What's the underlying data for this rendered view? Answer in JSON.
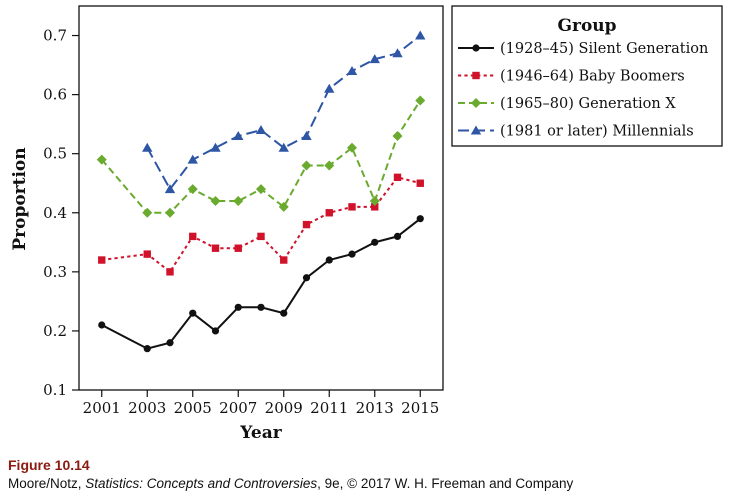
{
  "chart_data": {
    "type": "line",
    "xlabel": "Year",
    "ylabel": "Proportion",
    "xlim": [
      2000,
      2016
    ],
    "ylim": [
      0.1,
      0.75
    ],
    "x_ticks": [
      2001,
      2003,
      2005,
      2007,
      2009,
      2011,
      2013,
      2015
    ],
    "y_ticks": [
      0.1,
      0.2,
      0.3,
      0.4,
      0.5,
      0.6,
      0.7
    ],
    "legend_title": "Group",
    "legend_position": "outside-right",
    "series": [
      {
        "name": "(1928–45) Silent Generation",
        "color": "#111111",
        "marker": "circle",
        "dash": "solid",
        "points": [
          [
            2001,
            0.21
          ],
          [
            2003,
            0.17
          ],
          [
            2004,
            0.18
          ],
          [
            2005,
            0.23
          ],
          [
            2006,
            0.2
          ],
          [
            2007,
            0.24
          ],
          [
            2008,
            0.24
          ],
          [
            2009,
            0.23
          ],
          [
            2010,
            0.29
          ],
          [
            2011,
            0.32
          ],
          [
            2012,
            0.33
          ],
          [
            2013,
            0.35
          ],
          [
            2014,
            0.36
          ],
          [
            2015,
            0.39
          ]
        ]
      },
      {
        "name": "(1946–64) Baby Boomers",
        "color": "#d0122b",
        "marker": "square",
        "dash": "dotted",
        "points": [
          [
            2001,
            0.32
          ],
          [
            2003,
            0.33
          ],
          [
            2004,
            0.3
          ],
          [
            2005,
            0.36
          ],
          [
            2006,
            0.34
          ],
          [
            2007,
            0.34
          ],
          [
            2008,
            0.36
          ],
          [
            2009,
            0.32
          ],
          [
            2010,
            0.38
          ],
          [
            2011,
            0.4
          ],
          [
            2012,
            0.41
          ],
          [
            2013,
            0.41
          ],
          [
            2014,
            0.46
          ],
          [
            2015,
            0.45
          ]
        ]
      },
      {
        "name": "(1965–80) Generation X",
        "color": "#6aaa2e",
        "marker": "diamond",
        "dash": "dashed",
        "points": [
          [
            2001,
            0.49
          ],
          [
            2003,
            0.4
          ],
          [
            2004,
            0.4
          ],
          [
            2005,
            0.44
          ],
          [
            2006,
            0.42
          ],
          [
            2007,
            0.42
          ],
          [
            2008,
            0.44
          ],
          [
            2009,
            0.41
          ],
          [
            2010,
            0.48
          ],
          [
            2011,
            0.48
          ],
          [
            2012,
            0.51
          ],
          [
            2013,
            0.42
          ],
          [
            2014,
            0.53
          ],
          [
            2015,
            0.59
          ]
        ]
      },
      {
        "name": "(1981 or later) Millennials",
        "color": "#2e56a5",
        "marker": "triangle",
        "dash": "longdash",
        "points": [
          [
            2003,
            0.51
          ],
          [
            2004,
            0.44
          ],
          [
            2005,
            0.49
          ],
          [
            2006,
            0.51
          ],
          [
            2007,
            0.53
          ],
          [
            2008,
            0.54
          ],
          [
            2009,
            0.51
          ],
          [
            2010,
            0.53
          ],
          [
            2011,
            0.61
          ],
          [
            2012,
            0.64
          ],
          [
            2013,
            0.66
          ],
          [
            2014,
            0.67
          ],
          [
            2015,
            0.7
          ]
        ]
      }
    ]
  },
  "caption": {
    "figure_label": "Figure 10.14",
    "authors": "Moore/Notz, ",
    "book_title": "Statistics: Concepts and Controversies",
    "edition_publisher": ", 9e, © 2017 W. H. Freeman and Company"
  }
}
